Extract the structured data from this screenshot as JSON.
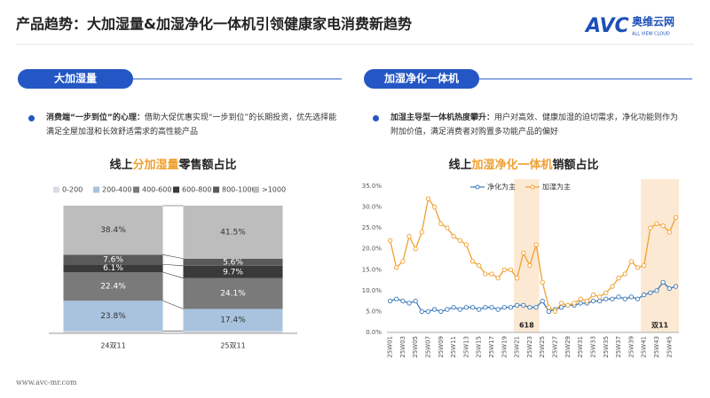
{
  "header": {
    "title": "产品趋势：大加湿量&加湿净化一体机引领健康家电消费新趋势",
    "logo": "AVC",
    "logo_cn": "奥维云网",
    "logo_en": "ALL VIEW CLOUD"
  },
  "sections": [
    {
      "tab": "大加湿量",
      "bullet_lead": "消费端“一步到位”的心理：",
      "bullet_text": "借助大促优惠实现“一步到位”的长期投资，优先选择能满足全屋加湿和长效舒适需求的高性能产品"
    },
    {
      "tab": "加湿净化一体机",
      "bullet_lead": "加湿主导型一体机热度攀升：",
      "bullet_text": "用户对高效、健康加湿的迫切需求，净化功能则作为附加价值，满足消费者对购置多功能产品的偏好"
    }
  ],
  "footer": "www.avc-mr.com",
  "chart_data": [
    {
      "type": "bar",
      "stacked": true,
      "title_parts": [
        "线上",
        "分加湿量",
        "零售额占比"
      ],
      "legend": "top",
      "categories": [
        "24双11",
        "25双11"
      ],
      "ylim": [
        0,
        100
      ],
      "series": [
        {
          "name": "0-200",
          "color": "#d9dde3",
          "values": [
            1.7,
            1.7
          ]
        },
        {
          "name": "200-400",
          "color": "#a9c3df",
          "values": [
            23.8,
            17.4
          ],
          "value_labels": [
            "23.8%",
            "17.4%"
          ]
        },
        {
          "name": "400-600",
          "color": "#7a7a7a",
          "values": [
            22.4,
            24.1
          ],
          "value_labels": [
            "22.4%",
            "24.1%"
          ]
        },
        {
          "name": "600-800",
          "color": "#3a3a3a",
          "values": [
            6.1,
            9.7
          ],
          "value_labels": [
            "6.1%",
            "9.7%"
          ]
        },
        {
          "name": "800-1000",
          "color": "#5a5a5a",
          "values": [
            7.6,
            5.6
          ],
          "value_labels": [
            "7.6%",
            "5.6%"
          ]
        },
        {
          "name": ">1000",
          "color": "#bdbdbd",
          "values": [
            38.4,
            41.5
          ],
          "value_labels": [
            "38.4%",
            "41.5%"
          ]
        }
      ]
    },
    {
      "type": "line",
      "title_parts": [
        "线上",
        "加湿净化一体机",
        "销额占比"
      ],
      "legend": "top",
      "categories": [
        "25W01",
        null,
        "25W03",
        null,
        "25W05",
        null,
        "25W07",
        null,
        "25W09",
        null,
        "25W11",
        null,
        "25W13",
        null,
        "25W15",
        null,
        "25W17",
        null,
        "25W19",
        null,
        "25W21",
        null,
        "25W23",
        null,
        "25W25",
        null,
        "25W27",
        null,
        "25W29",
        null,
        "25W31",
        null,
        "25W33",
        null,
        "25W35",
        null,
        "25W37",
        null,
        "25W39",
        null,
        "25W41",
        null,
        "25W43",
        null,
        "25W45",
        null
      ],
      "ylim": [
        0,
        35
      ],
      "yticks": [
        {
          "value": 0,
          "label": "0.0%"
        },
        {
          "value": 5,
          "label": "5.0%"
        },
        {
          "value": 10,
          "label": "10.0%"
        },
        {
          "value": 15,
          "label": "15.0%"
        },
        {
          "value": 20,
          "label": "20.0%"
        },
        {
          "value": 25,
          "label": "25.0%"
        },
        {
          "value": 30,
          "label": "30.0%"
        },
        {
          "value": 35,
          "label": "35.0%"
        }
      ],
      "highlights": [
        {
          "label": "618",
          "span": [
            20,
            23
          ]
        },
        {
          "label": "双11",
          "span": [
            40,
            45
          ]
        }
      ],
      "series": [
        {
          "name": "净化为主",
          "color": "#3b78b8",
          "values": [
            7.5,
            8,
            7.5,
            7,
            7.5,
            5,
            5,
            5.5,
            5,
            5.5,
            6,
            5.5,
            6,
            6,
            5.5,
            6,
            6,
            5.5,
            6,
            6,
            6.5,
            6.5,
            6,
            6,
            7.5,
            5,
            5.5,
            6,
            6.5,
            6.5,
            7,
            7,
            7.5,
            7.5,
            8,
            8,
            8.5,
            8,
            8.5,
            8,
            9,
            9.5,
            10,
            12,
            10.5,
            11
          ]
        },
        {
          "name": "加湿为主",
          "color": "#f0a030",
          "values": [
            22,
            15.5,
            17,
            23,
            20,
            24,
            32,
            30,
            26,
            25,
            23,
            22,
            21,
            17,
            16,
            14,
            14,
            13,
            15,
            15,
            13,
            19,
            16,
            21,
            12,
            6,
            5,
            7,
            6.5,
            7,
            8,
            7.5,
            9,
            8.5,
            9.5,
            11,
            13,
            14,
            17,
            15.5,
            16,
            25,
            26,
            25.5,
            24,
            27.5
          ]
        }
      ]
    }
  ]
}
